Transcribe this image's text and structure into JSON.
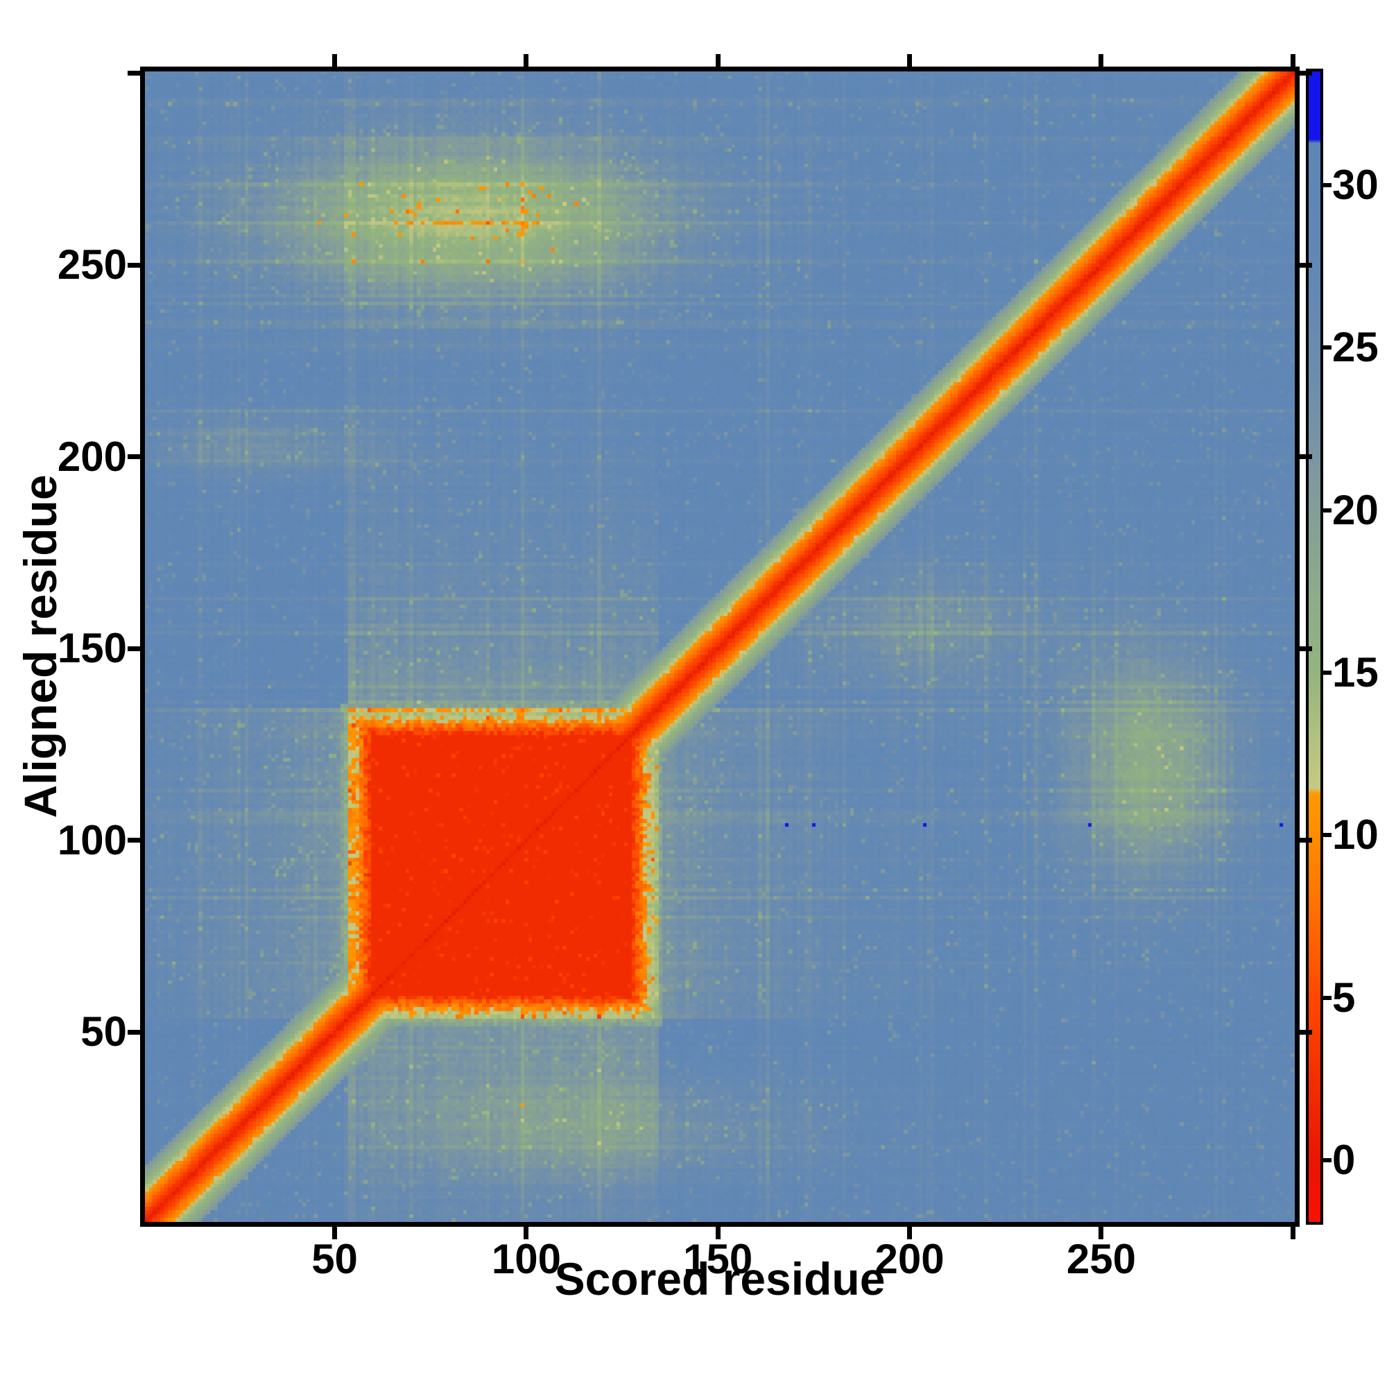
{
  "chart_data": {
    "type": "heatmap",
    "title": "",
    "xlabel": "Scored residue",
    "ylabel": "Aligned residue",
    "x_range": [
      1,
      300
    ],
    "y_range": [
      1,
      300
    ],
    "x_ticks": [
      50,
      100,
      150,
      200,
      250
    ],
    "y_ticks": [
      50,
      100,
      150,
      200,
      250
    ],
    "x_tick_labels": [
      "50",
      "100",
      "150",
      "200",
      "250"
    ],
    "y_tick_labels": [
      "250",
      "200",
      "150",
      "100",
      "50"
    ],
    "edge_ticks_unlabeled": [
      50,
      100,
      150,
      200,
      250,
      300
    ],
    "grid": false,
    "legend_position": "colorbar-right",
    "colorbar": {
      "tick_values": [
        30,
        25,
        20,
        15,
        10,
        5,
        0
      ],
      "tick_labels": [
        "30",
        "25",
        "20",
        "15",
        "10",
        "5",
        "0"
      ],
      "value_top": 33.5,
      "value_bottom": -1.9,
      "cap_above_value": 31.4
    },
    "colormap_stops": [
      [
        -1.9,
        [
          250,
          16,
          6
        ]
      ],
      [
        0.0,
        [
          232,
          22,
          0
        ]
      ],
      [
        2.0,
        [
          240,
          42,
          0
        ]
      ],
      [
        5.0,
        [
          255,
          72,
          0
        ]
      ],
      [
        8.0,
        [
          255,
          116,
          0
        ]
      ],
      [
        10.0,
        [
          255,
          140,
          0
        ]
      ],
      [
        11.3,
        [
          255,
          154,
          0
        ]
      ],
      [
        11.45,
        [
          199,
          201,
          129
        ]
      ],
      [
        13.0,
        [
          178,
          193,
          127
        ]
      ],
      [
        15.0,
        [
          147,
          180,
          127
        ]
      ],
      [
        18.0,
        [
          140,
          168,
          141
        ]
      ],
      [
        21.0,
        [
          127,
          153,
          159
        ]
      ],
      [
        24.0,
        [
          109,
          141,
          173
        ]
      ],
      [
        27.0,
        [
          98,
          136,
          180
        ]
      ],
      [
        31.3,
        [
          93,
          134,
          182
        ]
      ],
      [
        31.42,
        [
          20,
          20,
          235
        ]
      ],
      [
        33.5,
        [
          20,
          20,
          235
        ]
      ]
    ],
    "background_value": 28.3,
    "features": {
      "diagonal": {
        "core_value": 0.35,
        "slope_per_residue": 1.42,
        "halfwidth_residues": 15
      },
      "domain_block": {
        "x0": 60,
        "x1": 127,
        "y0": 60,
        "y1": 127,
        "core_value": 2.2,
        "rim_slope": 2.2,
        "rim_rag": 5
      },
      "cross_bands": [
        {
          "axis": "rows",
          "from": 54,
          "to": 134,
          "depth": 7.5,
          "decay": 40
        },
        {
          "axis": "cols",
          "from": 54,
          "to": 134,
          "depth": 8.5,
          "decay": 40
        }
      ],
      "clouds": [
        {
          "cx": 85,
          "cy": 262,
          "sx": 40,
          "sy": 15,
          "depth": 14.8
        },
        {
          "cx": 263,
          "cy": 120,
          "sx": 16,
          "sy": 22,
          "depth": 11
        },
        {
          "cx": 203,
          "cy": 155,
          "sx": 25,
          "sy": 12,
          "depth": 6
        },
        {
          "cx": 120,
          "cy": 25,
          "sx": 40,
          "sy": 10,
          "depth": 6
        },
        {
          "cx": 30,
          "cy": 203,
          "sx": 22,
          "sy": 6,
          "depth": 5.5
        }
      ],
      "high_error_dots": {
        "value": 33,
        "aligned_row": 104,
        "scored_cols": [
          168,
          175,
          204,
          247,
          297
        ]
      },
      "low_error_specks": {
        "value": 9.5,
        "cells": [
          [
            106,
            268
          ],
          [
            113,
            266
          ],
          [
            103,
            261
          ],
          [
            107,
            254
          ]
        ]
      }
    }
  },
  "colors": {
    "background_blue": "#5f89b6",
    "speckle_green": "#7f9e96",
    "cloud_yellow": "#c9cc84",
    "block_orange": "#ff7400",
    "block_red": "#f02a00",
    "diagonal_red": "#e61600",
    "cap_blue": "#1414eb",
    "axis_black": "#000000"
  }
}
